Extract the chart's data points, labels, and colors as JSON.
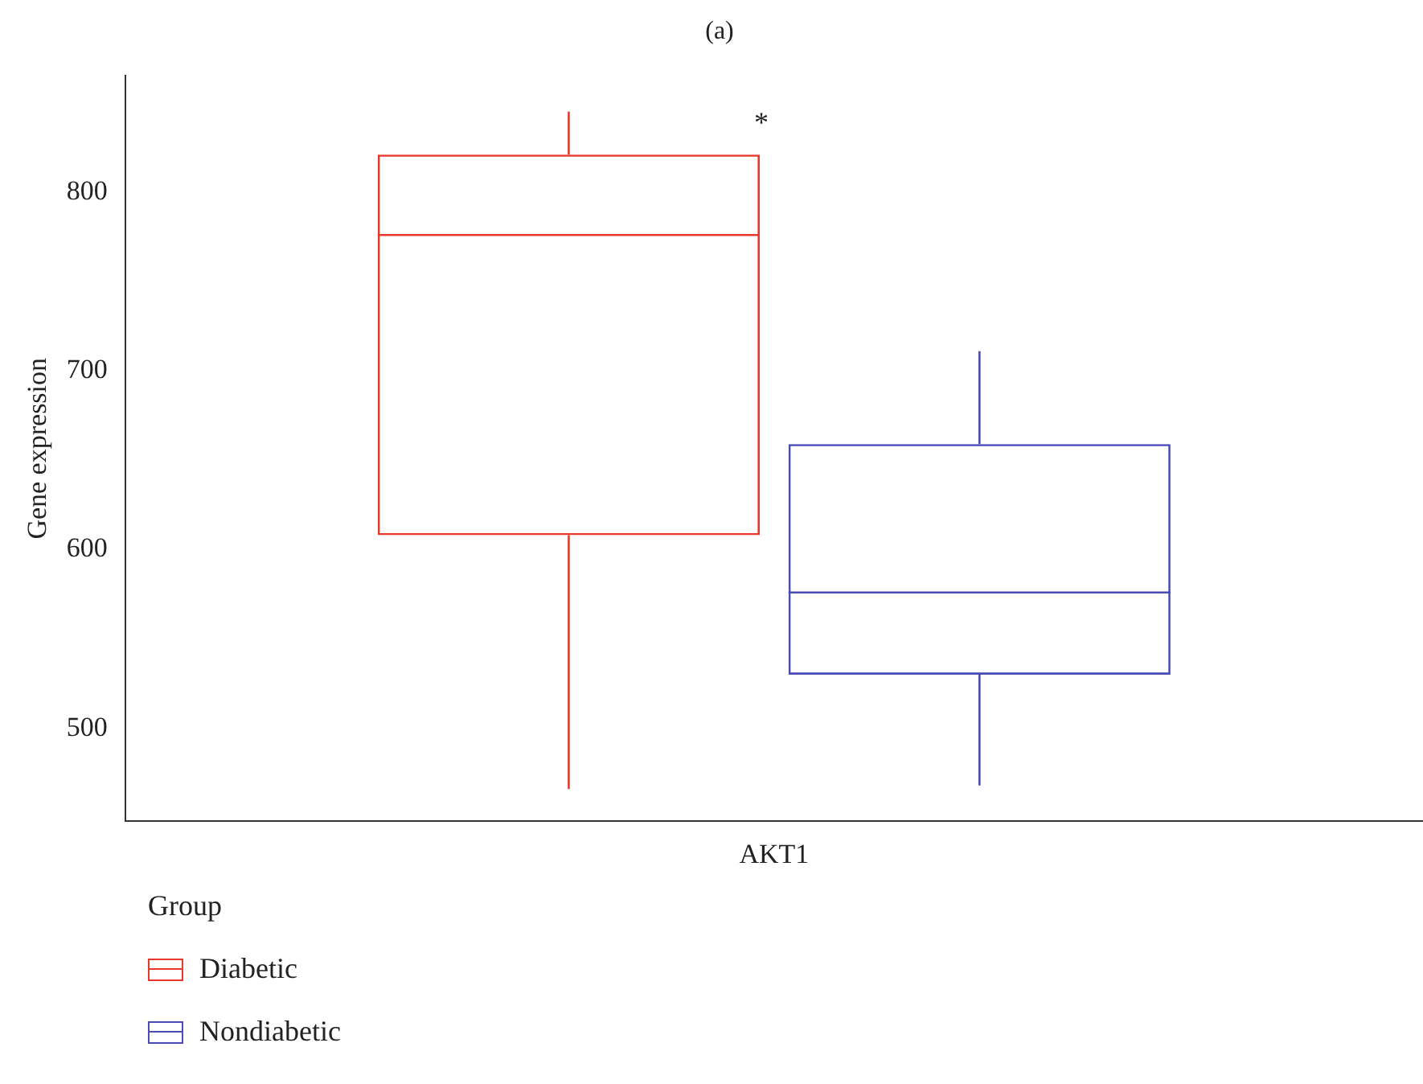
{
  "chart_data": {
    "type": "box",
    "title": "(a)",
    "ylabel": "Gene expression",
    "legend_title": "Group",
    "legend": "bottom left",
    "categories": [
      "AKT1"
    ],
    "ylim": [
      448,
      865
    ],
    "yticks": [
      500,
      600,
      700,
      800
    ],
    "series": [
      {
        "name": "Diabetic",
        "color": "#e8382c",
        "boxes": [
          {
            "low": 466,
            "q1": 608,
            "median": 776,
            "q3": 821,
            "high": 845
          }
        ]
      },
      {
        "name": "Nondiabetic",
        "color": "#4a4ab8",
        "boxes": [
          {
            "low": 468,
            "q1": 530,
            "median": 576,
            "q3": 659,
            "high": 711
          }
        ]
      }
    ],
    "annotations": [
      "*"
    ]
  }
}
